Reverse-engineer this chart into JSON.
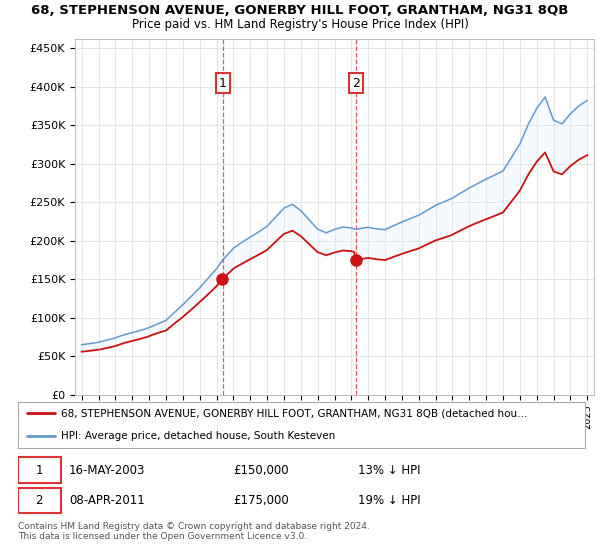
{
  "title1": "68, STEPHENSON AVENUE, GONERBY HILL FOOT, GRANTHAM, NG31 8QB",
  "title2": "Price paid vs. HM Land Registry's House Price Index (HPI)",
  "ylim": [
    0,
    460000
  ],
  "yticks": [
    0,
    50000,
    100000,
    150000,
    200000,
    250000,
    300000,
    350000,
    400000,
    450000
  ],
  "ytick_labels": [
    "£0",
    "£50K",
    "£100K",
    "£150K",
    "£200K",
    "£250K",
    "£300K",
    "£350K",
    "£400K",
    "£450K"
  ],
  "sale1_date": 2003.37,
  "sale1_price": 150000,
  "sale2_date": 2011.27,
  "sale2_price": 175000,
  "legend_red": "68, STEPHENSON AVENUE, GONERBY HILL FOOT, GRANTHAM, NG31 8QB (detached hou…",
  "legend_blue": "HPI: Average price, detached house, South Kesteven",
  "footnote": "Contains HM Land Registry data © Crown copyright and database right 2024.\nThis data is licensed under the Open Government Licence v3.0.",
  "background_color": "#ffffff",
  "plot_bg": "#ffffff",
  "red_color": "#cc1111",
  "blue_color": "#6699cc",
  "fill_color": "#ddeeff",
  "grid_color": "#e0e0e0",
  "vline_color": "#dd3333"
}
